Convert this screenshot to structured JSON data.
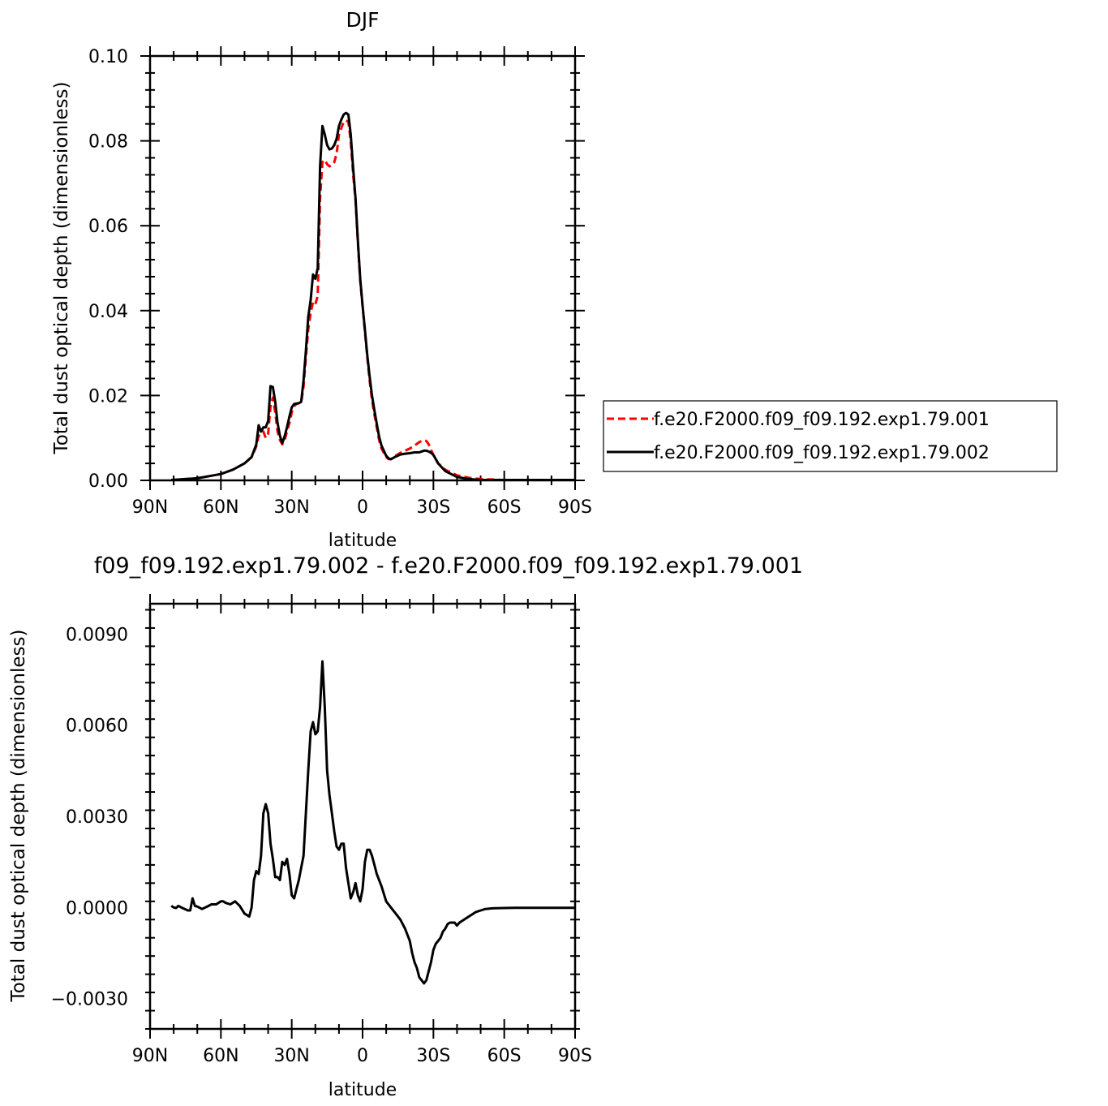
{
  "chart_data": [
    {
      "type": "line",
      "title": "DJF",
      "xlabel": "latitude",
      "ylabel": "Total dust optical depth (dimensionless)",
      "xlim": [
        90,
        -90
      ],
      "ylim": [
        0,
        0.1
      ],
      "x_ticks": [
        90,
        60,
        30,
        0,
        -30,
        -60,
        -90
      ],
      "x_tick_labels": [
        "90N",
        "60N",
        "30N",
        "0",
        "30S",
        "60S",
        "90S"
      ],
      "y_ticks": [
        0,
        0.02,
        0.04,
        0.06,
        0.08,
        0.1
      ],
      "y_tick_labels": [
        "0.00",
        "0.02",
        "0.04",
        "0.06",
        "0.08",
        "0.10"
      ],
      "legend_position": "right",
      "series": [
        {
          "name": "f.e20.F2000.f09_f09.192.exp1.79.001",
          "color": "#ff0000",
          "style": "dashed",
          "x": [
            81,
            75,
            70,
            65,
            60,
            55,
            50,
            47,
            45,
            44,
            43,
            42,
            41,
            40,
            39,
            38,
            37,
            36,
            35,
            34,
            33,
            32,
            31,
            30,
            29,
            28,
            27,
            26,
            25,
            24,
            23,
            22,
            21,
            20,
            19,
            18,
            17,
            16,
            15,
            14,
            13,
            12,
            11,
            10,
            9,
            8,
            7,
            6,
            5,
            4,
            3,
            2,
            1,
            0,
            -1,
            -2,
            -3,
            -4,
            -5,
            -6,
            -7,
            -8,
            -9,
            -10,
            -11,
            -12,
            -14,
            -16,
            -18,
            -20,
            -22,
            -24,
            -25,
            -26,
            -27,
            -28,
            -29,
            -30,
            -32,
            -35,
            -40,
            -45,
            -50,
            -60,
            -70,
            -80,
            -90
          ],
          "y": [
            0.0001,
            0.0003,
            0.0005,
            0.001,
            0.0015,
            0.0025,
            0.004,
            0.0055,
            0.008,
            0.0105,
            0.011,
            0.0115,
            0.01,
            0.011,
            0.0175,
            0.0195,
            0.016,
            0.0115,
            0.0095,
            0.0085,
            0.0095,
            0.0115,
            0.0135,
            0.016,
            0.0175,
            0.018,
            0.0182,
            0.0183,
            0.022,
            0.029,
            0.0355,
            0.0395,
            0.042,
            0.0415,
            0.0435,
            0.0665,
            0.075,
            0.0755,
            0.0745,
            0.074,
            0.0743,
            0.075,
            0.077,
            0.0815,
            0.083,
            0.0845,
            0.0848,
            0.0845,
            0.08,
            0.072,
            0.066,
            0.056,
            0.047,
            0.041,
            0.035,
            0.029,
            0.0235,
            0.019,
            0.0155,
            0.0125,
            0.0095,
            0.0075,
            0.0065,
            0.0055,
            0.005,
            0.005,
            0.0058,
            0.0065,
            0.007,
            0.0075,
            0.0082,
            0.009,
            0.0093,
            0.0095,
            0.0093,
            0.0085,
            0.0072,
            0.006,
            0.004,
            0.0025,
            0.0012,
            0.0006,
            0.0003,
            0.0001,
            0.0001,
            0.0001,
            0.0001
          ]
        },
        {
          "name": "f.e20.F2000.f09_f09.192.exp1.79.002",
          "color": "#000000",
          "style": "solid",
          "x": [
            81,
            75,
            70,
            65,
            60,
            55,
            50,
            47,
            45,
            44,
            43,
            42,
            41,
            40,
            39,
            38,
            37,
            36,
            35,
            34,
            33,
            32,
            31,
            30,
            29,
            28,
            27,
            26,
            25,
            24,
            23,
            22,
            21,
            20,
            19,
            18,
            17,
            16,
            15,
            14,
            13,
            12,
            11,
            10,
            9,
            8,
            7,
            6,
            5,
            4,
            3,
            2,
            1,
            0,
            -1,
            -2,
            -3,
            -4,
            -5,
            -6,
            -7,
            -8,
            -9,
            -10,
            -11,
            -12,
            -14,
            -16,
            -18,
            -20,
            -22,
            -24,
            -25,
            -26,
            -27,
            -28,
            -29,
            -30,
            -32,
            -35,
            -40,
            -45,
            -50,
            -60,
            -70,
            -80,
            -90
          ],
          "y": [
            0.0001,
            0.0003,
            0.0005,
            0.001,
            0.0015,
            0.0025,
            0.004,
            0.0055,
            0.0085,
            0.013,
            0.0115,
            0.0125,
            0.0125,
            0.014,
            0.0222,
            0.022,
            0.0185,
            0.0135,
            0.0105,
            0.0088,
            0.0104,
            0.0125,
            0.015,
            0.0172,
            0.018,
            0.0181,
            0.0182,
            0.0185,
            0.0235,
            0.0305,
            0.0385,
            0.0425,
            0.0485,
            0.0475,
            0.05,
            0.074,
            0.0835,
            0.0815,
            0.079,
            0.078,
            0.0782,
            0.079,
            0.0805,
            0.0835,
            0.085,
            0.0862,
            0.0866,
            0.0862,
            0.0815,
            0.0735,
            0.0665,
            0.0565,
            0.0475,
            0.0412,
            0.0355,
            0.0295,
            0.0245,
            0.02,
            0.0165,
            0.0133,
            0.0103,
            0.0082,
            0.007,
            0.0058,
            0.0052,
            0.005,
            0.0056,
            0.0061,
            0.0063,
            0.0064,
            0.0066,
            0.0066,
            0.0068,
            0.007,
            0.007,
            0.0068,
            0.0065,
            0.006,
            0.004,
            0.0022,
            0.0008,
            0.0003,
            0.0001,
            0.0001,
            0.0001,
            0.0001,
            0.0001
          ]
        }
      ]
    },
    {
      "type": "line",
      "title": "f09_f09.192.exp1.79.002 - f.e20.F2000.f09_f09.192.exp1.79.001",
      "xlabel": "latitude",
      "ylabel": "Total dust optical depth (dimensionless)",
      "xlim": [
        90,
        -90
      ],
      "ylim": [
        -0.004,
        0.01
      ],
      "x_ticks": [
        90,
        60,
        30,
        0,
        -30,
        -60,
        -90
      ],
      "x_tick_labels": [
        "90N",
        "60N",
        "30N",
        "0",
        "30S",
        "60S",
        "90S"
      ],
      "y_ticks": [
        -0.003,
        0,
        0.003,
        0.006,
        0.009
      ],
      "y_tick_labels": [
        "−0.0030",
        "0.0000",
        "0.0030",
        "0.0060",
        "0.0090"
      ],
      "series": [
        {
          "color": "#000000",
          "style": "solid",
          "x": [
            81,
            80,
            79,
            78,
            76,
            74,
            73,
            72,
            71,
            70,
            68,
            66,
            64,
            62,
            60,
            59,
            58,
            56,
            54,
            52,
            50,
            48,
            47,
            46,
            45,
            44,
            43,
            42,
            41,
            40,
            39,
            38,
            37,
            36,
            35,
            34,
            33,
            32,
            31,
            30,
            29,
            28,
            27,
            26,
            25,
            24,
            23,
            22,
            21,
            20,
            19,
            18,
            17,
            16,
            15,
            14,
            13,
            12,
            11,
            10,
            9,
            8,
            7,
            6,
            5,
            4,
            3,
            2,
            1,
            0,
            -1,
            -2,
            -3,
            -4,
            -5,
            -6,
            -8,
            -10,
            -12,
            -14,
            -16,
            -18,
            -20,
            -21,
            -22,
            -23,
            -24,
            -25,
            -26,
            -27,
            -28,
            -29,
            -30,
            -31,
            -32,
            -33,
            -34,
            -35,
            -36,
            -37,
            -38,
            -39,
            -40,
            -41,
            -42,
            -43,
            -44,
            -45,
            -46,
            -47,
            -48,
            -50,
            -52,
            -55,
            -60,
            -65,
            -70,
            -80,
            -90
          ],
          "y": [
            5e-05,
            0.0,
            -2e-05,
            5e-05,
            -3e-05,
            -0.0001,
            -0.0001,
            0.0003,
            5e-05,
            3e-05,
            -5e-05,
            2e-05,
            0.0001,
            0.0001,
            0.0002,
            0.0002,
            0.00015,
            0.0001,
            0.0002,
            5e-05,
            -0.0002,
            -0.0003,
            0.0,
            0.0009,
            0.0012,
            0.0011,
            0.0017,
            0.0031,
            0.0034,
            0.0031,
            0.0021,
            0.0016,
            0.001,
            0.001,
            0.0009,
            0.0015,
            0.0014,
            0.0016,
            0.0011,
            0.0004,
            0.0003,
            0.0006,
            0.0009,
            0.0013,
            0.0017,
            0.0031,
            0.0045,
            0.0058,
            0.0061,
            0.0057,
            0.0058,
            0.0066,
            0.0081,
            0.0066,
            0.0045,
            0.0037,
            0.0031,
            0.0025,
            0.002,
            0.0019,
            0.0021,
            0.0021,
            0.0013,
            0.0008,
            0.0003,
            0.0005,
            0.0008,
            0.0004,
            0.0002,
            0.0006,
            0.0015,
            0.0019,
            0.0019,
            0.0017,
            0.0014,
            0.0011,
            0.0007,
            0.0002,
            0.0,
            -0.0002,
            -0.0004,
            -0.0007,
            -0.0011,
            -0.0015,
            -0.0018,
            -0.002,
            -0.0023,
            -0.0024,
            -0.0025,
            -0.0024,
            -0.0021,
            -0.0018,
            -0.0014,
            -0.0012,
            -0.0011,
            -0.001,
            -0.0008,
            -0.0007,
            -0.00055,
            -0.0005,
            -0.0005,
            -0.0005,
            -0.0006,
            -0.0005,
            -0.00045,
            -0.0004,
            -0.00035,
            -0.0003,
            -0.00025,
            -0.0002,
            -0.00015,
            -0.0001,
            -5e-05,
            -3e-05,
            -2e-05,
            -1e-05,
            -1e-05,
            -1e-05,
            -1e-05
          ]
        }
      ]
    }
  ]
}
